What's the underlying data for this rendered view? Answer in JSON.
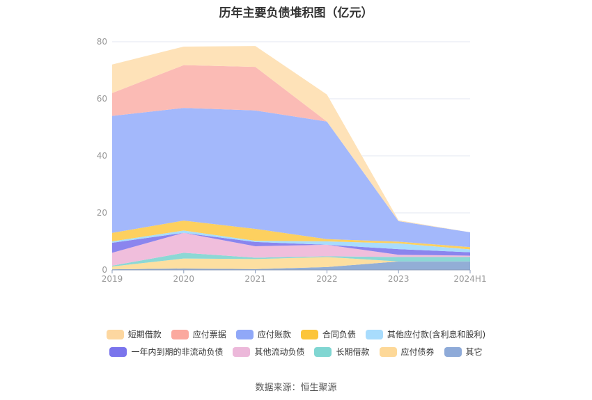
{
  "chart_data": {
    "type": "area",
    "title": "历年主要负债堆积图（亿元）",
    "categories": [
      "2019",
      "2020",
      "2021",
      "2022",
      "2023",
      "2024H1"
    ],
    "ylim": [
      0,
      80
    ],
    "yticks": [
      "0",
      "20",
      "40",
      "60",
      "80"
    ],
    "grid": true,
    "legend_placement": "bottom",
    "series": [
      {
        "name": "其它",
        "color": "#92aed6",
        "values": [
          0.2,
          0.5,
          0.3,
          1.0,
          3.0,
          3.0
        ]
      },
      {
        "name": "应付债券",
        "color": "#fddfa0",
        "values": [
          1.0,
          3.5,
          3.5,
          3.5,
          0.0,
          0.0
        ]
      },
      {
        "name": "长期借款",
        "color": "#8cd8d5",
        "values": [
          0.3,
          2.0,
          0.5,
          0.3,
          1.5,
          1.5
        ]
      },
      {
        "name": "其他流动负债",
        "color": "#f0bedc",
        "values": [
          4.5,
          7.0,
          4.0,
          4.0,
          0.8,
          0.5
        ]
      },
      {
        "name": "一年内到期的非流动负债",
        "color": "#8a85ee",
        "values": [
          3.5,
          0.0,
          1.5,
          0.0,
          2.0,
          1.2
        ]
      },
      {
        "name": "其他应付款(含利息和股利)",
        "color": "#a8dcfd",
        "values": [
          0.5,
          0.8,
          0.4,
          1.2,
          2.0,
          1.0
        ]
      },
      {
        "name": "合同负债",
        "color": "#fdd05f",
        "values": [
          3.0,
          3.5,
          4.2,
          0.8,
          0.6,
          0.8
        ]
      },
      {
        "name": "应付账款",
        "color": "#a3b8fb",
        "values": [
          41.0,
          39.5,
          41.5,
          41.2,
          7.2,
          5.2
        ]
      },
      {
        "name": "应付票据",
        "color": "#fbbbb5",
        "values": [
          8.0,
          15.0,
          15.3,
          0.0,
          0.0,
          0.0
        ]
      },
      {
        "name": "短期借款",
        "color": "#fee2b8",
        "values": [
          10.0,
          6.5,
          7.3,
          9.5,
          0.3,
          0.0
        ]
      }
    ]
  },
  "legend": {
    "row1": [
      {
        "name": "短期借款",
        "color": "#fdd7a0"
      },
      {
        "name": "应付票据",
        "color": "#fba99f"
      },
      {
        "name": "应付账款",
        "color": "#90a8f8"
      },
      {
        "name": "合同负债",
        "color": "#fcc53a"
      },
      {
        "name": "其他应付款(含利息和股利)",
        "color": "#a8dcfd"
      }
    ],
    "row2": [
      {
        "name": "一年内到期的非流动负债",
        "color": "#7a74ec"
      },
      {
        "name": "其他流动负债",
        "color": "#ecb8da"
      },
      {
        "name": "长期借款",
        "color": "#80d6d2"
      },
      {
        "name": "应付债券",
        "color": "#fdd898"
      },
      {
        "name": "其它",
        "color": "#8eaad8"
      }
    ]
  },
  "source": "数据来源：恒生聚源"
}
